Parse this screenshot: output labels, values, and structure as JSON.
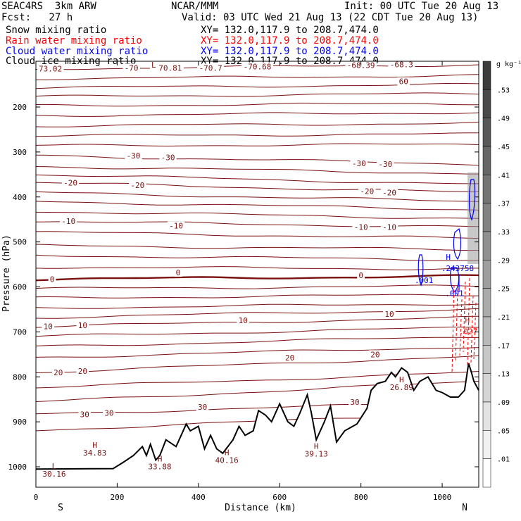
{
  "header": {
    "model": "SEAC4RS  3km ARW",
    "org": "NCAR/MMM",
    "init": "Init: 00 UTC Tue 20 Aug 13",
    "fcst": "Fcst:   27 h",
    "valid": "Valid: 03 UTC Wed 21 Aug 13 (22 CDT Tue 20 Aug 13)",
    "fields": [
      {
        "label": "Snow mixing ratio",
        "xy": "XY= 132.0,117.9 to 208.7,474.0",
        "color": "#000000"
      },
      {
        "label": "Rain water mixing ratio",
        "xy": "XY= 132.0,117.9 to 208.7,474.0",
        "color": "#ff0000"
      },
      {
        "label": "Cloud water mixing ratio",
        "xy": "XY= 132.0,117.9 to 208.7,474.0",
        "color": "#0000ff"
      },
      {
        "label": "Cloud ice mixing ratio",
        "xy": "XY= 132.0,117.9 to 208.7,474.0",
        "color": "#000000"
      }
    ]
  },
  "chart_data": {
    "type": "cross-section",
    "xlabel": "Distance (km)",
    "ylabel": "Pressure (hPa)",
    "xlim": [
      0,
      1090
    ],
    "ylim": [
      1050,
      100
    ],
    "xticks": [
      0,
      200,
      400,
      600,
      800,
      1000
    ],
    "yticks": [
      200,
      300,
      400,
      500,
      600,
      700,
      800,
      900,
      1000
    ],
    "y_tick_labels": [
      "200",
      "300",
      "400",
      "500",
      "600",
      "700",
      "800",
      "900",
      "1000"
    ],
    "left_end_label": "S",
    "right_end_label": "N",
    "terrain_color": "#000000",
    "contour_color": "#7a1010",
    "freezing_line_label": "0",
    "colorbar": {
      "unit": "g kg⁻¹",
      "labels": [
        ".53",
        ".49",
        ".45",
        ".41",
        ".37",
        ".33",
        ".29",
        ".25",
        ".21",
        ".17",
        ".13",
        ".09",
        ".05",
        ".01"
      ]
    },
    "temperature_labels": [
      {
        "text": "-73.02",
        "x": 30,
        "p": 115
      },
      {
        "text": "-70",
        "x": 235,
        "p": 113
      },
      {
        "text": "-70.81",
        "x": 325,
        "p": 113
      },
      {
        "text": "-70.7",
        "x": 430,
        "p": 113
      },
      {
        "text": "-70.68",
        "x": 545,
        "p": 110
      },
      {
        "text": "-68.39",
        "x": 800,
        "p": 107
      },
      {
        "text": "-68.3",
        "x": 900,
        "p": 105
      },
      {
        "text": "L",
        "x": 290,
        "p": 106
      },
      {
        "text": "60",
        "x": 905,
        "p": 143
      },
      {
        "text": "-30",
        "x": 240,
        "p": 308
      },
      {
        "text": "-30",
        "x": 325,
        "p": 312
      },
      {
        "text": "-30",
        "x": 795,
        "p": 325
      },
      {
        "text": "-30",
        "x": 860,
        "p": 327
      },
      {
        "text": "-20",
        "x": 85,
        "p": 368
      },
      {
        "text": "-20",
        "x": 250,
        "p": 374
      },
      {
        "text": "-20",
        "x": 815,
        "p": 387
      },
      {
        "text": "-20",
        "x": 870,
        "p": 390
      },
      {
        "text": "-10",
        "x": 80,
        "p": 454
      },
      {
        "text": "-10",
        "x": 345,
        "p": 464
      },
      {
        "text": "-10",
        "x": 800,
        "p": 467
      },
      {
        "text": "-10",
        "x": 870,
        "p": 467
      },
      {
        "text": "0",
        "x": 40,
        "p": 583
      },
      {
        "text": "0",
        "x": 350,
        "p": 568
      },
      {
        "text": "0",
        "x": 800,
        "p": 574
      },
      {
        "text": "10",
        "x": 30,
        "p": 688
      },
      {
        "text": "10",
        "x": 115,
        "p": 685
      },
      {
        "text": "10",
        "x": 510,
        "p": 674
      },
      {
        "text": "10",
        "x": 870,
        "p": 660
      },
      {
        "text": "20",
        "x": 55,
        "p": 790
      },
      {
        "text": "20",
        "x": 115,
        "p": 787
      },
      {
        "text": "20",
        "x": 625,
        "p": 757
      },
      {
        "text": "20",
        "x": 835,
        "p": 750
      },
      {
        "text": "30",
        "x": 120,
        "p": 883
      },
      {
        "text": "30",
        "x": 180,
        "p": 880
      },
      {
        "text": "30",
        "x": 410,
        "p": 867
      },
      {
        "text": "30",
        "x": 785,
        "p": 856
      }
    ],
    "extrema_labels": [
      {
        "mark": "L",
        "value": "30.16",
        "x": 45,
        "p": 1005
      },
      {
        "mark": "H",
        "value": "34.83",
        "x": 145,
        "p": 958
      },
      {
        "mark": "H",
        "value": "33.88",
        "x": 305,
        "p": 988
      },
      {
        "mark": "H",
        "value": "40.16",
        "x": 470,
        "p": 974
      },
      {
        "mark": "H",
        "value": "39.13",
        "x": 690,
        "p": 960
      },
      {
        "mark": "H",
        "value": "26.89",
        "x": 900,
        "p": 812
      }
    ],
    "cloud_labels": [
      {
        "text": ".001",
        "x": 955,
        "p": 591
      },
      {
        "text": "H",
        "x": 1015,
        "p": 540
      },
      {
        "text": ".243758",
        "x": 1038,
        "p": 565
      },
      {
        "text": ".001",
        "x": 1030,
        "p": 620
      }
    ],
    "rain_labels": [
      {
        "text": "H",
        "x": 1062,
        "p": 680
      },
      {
        "text": ".027",
        "x": 1064,
        "p": 705
      }
    ],
    "terrain_profile": [
      [
        0,
        1005
      ],
      [
        190,
        1004
      ],
      [
        215,
        990
      ],
      [
        240,
        975
      ],
      [
        262,
        955
      ],
      [
        272,
        975
      ],
      [
        282,
        950
      ],
      [
        295,
        985
      ],
      [
        305,
        975
      ],
      [
        320,
        940
      ],
      [
        345,
        955
      ],
      [
        370,
        905
      ],
      [
        380,
        920
      ],
      [
        400,
        910
      ],
      [
        415,
        960
      ],
      [
        430,
        930
      ],
      [
        445,
        960
      ],
      [
        460,
        970
      ],
      [
        485,
        940
      ],
      [
        500,
        910
      ],
      [
        515,
        930
      ],
      [
        535,
        920
      ],
      [
        548,
        875
      ],
      [
        565,
        885
      ],
      [
        580,
        900
      ],
      [
        600,
        860
      ],
      [
        620,
        900
      ],
      [
        635,
        910
      ],
      [
        650,
        880
      ],
      [
        668,
        840
      ],
      [
        678,
        880
      ],
      [
        690,
        940
      ],
      [
        710,
        900
      ],
      [
        725,
        865
      ],
      [
        740,
        945
      ],
      [
        760,
        920
      ],
      [
        790,
        905
      ],
      [
        815,
        870
      ],
      [
        825,
        830
      ],
      [
        840,
        815
      ],
      [
        860,
        810
      ],
      [
        875,
        790
      ],
      [
        885,
        800
      ],
      [
        900,
        780
      ],
      [
        915,
        790
      ],
      [
        930,
        830
      ],
      [
        945,
        810
      ],
      [
        965,
        800
      ],
      [
        985,
        830
      ],
      [
        1000,
        835
      ],
      [
        1020,
        845
      ],
      [
        1040,
        845
      ],
      [
        1055,
        830
      ],
      [
        1065,
        770
      ],
      [
        1072,
        790
      ],
      [
        1078,
        810
      ],
      [
        1090,
        830
      ]
    ],
    "isotherm_levels": [
      {
        "p_left": 115,
        "p_right": 106
      },
      {
        "p_left": 137,
        "p_right": 130
      },
      {
        "p_left": 157,
        "p_right": 150
      },
      {
        "p_left": 177,
        "p_right": 170
      },
      {
        "p_left": 197,
        "p_right": 192
      },
      {
        "p_left": 219,
        "p_right": 212
      },
      {
        "p_left": 242,
        "p_right": 236
      },
      {
        "p_left": 264,
        "p_right": 260
      },
      {
        "p_left": 286,
        "p_right": 283
      },
      {
        "p_left": 308,
        "p_right": 327
      },
      {
        "p_left": 332,
        "p_right": 348
      },
      {
        "p_left": 350,
        "p_right": 372
      },
      {
        "p_left": 368,
        "p_right": 390
      },
      {
        "p_left": 390,
        "p_right": 410
      },
      {
        "p_left": 410,
        "p_right": 428
      },
      {
        "p_left": 432,
        "p_right": 448
      },
      {
        "p_left": 454,
        "p_right": 467
      },
      {
        "p_left": 478,
        "p_right": 492
      },
      {
        "p_left": 508,
        "p_right": 517
      },
      {
        "p_left": 530,
        "p_right": 540
      },
      {
        "p_left": 556,
        "p_right": 560
      },
      {
        "p_left": 583,
        "p_right": 576,
        "freezing": true
      },
      {
        "p_left": 604,
        "p_right": 598
      },
      {
        "p_left": 625,
        "p_right": 617
      },
      {
        "p_left": 647,
        "p_right": 637
      },
      {
        "p_left": 668,
        "p_right": 650
      },
      {
        "p_left": 688,
        "p_right": 668
      },
      {
        "p_left": 710,
        "p_right": 690
      },
      {
        "p_left": 733,
        "p_right": 710
      },
      {
        "p_left": 757,
        "p_right": 733
      },
      {
        "p_left": 790,
        "p_right": 754
      },
      {
        "p_left": 824,
        "p_right": 790
      },
      {
        "p_left": 856,
        "p_right": 810
      },
      {
        "p_left": 883,
        "p_right": 856
      },
      {
        "p_left": 919,
        "p_right": 880
      }
    ]
  }
}
